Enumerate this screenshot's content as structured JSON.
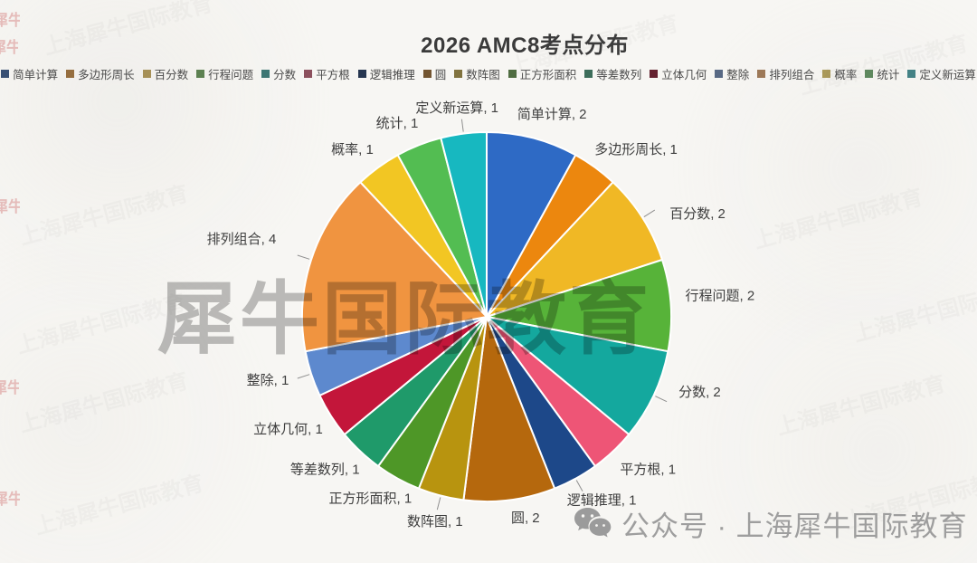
{
  "title": "2026 AMC8考点分布",
  "watermark": {
    "center_text": "犀牛国际教育",
    "ghost_text": "上海犀牛国际教育",
    "stamp_text": "犀牛国际教育"
  },
  "footer": {
    "icon": "wechat-icon",
    "account_label": "公众号",
    "separator": " · ",
    "account_name": "上海犀牛国际教育"
  },
  "chart_data": {
    "type": "pie",
    "title": "2026 AMC8考点分布",
    "legend_position": "top",
    "start_angle_deg": 0,
    "direction": "clockwise",
    "total": 25,
    "label_format": "{category}, {value}",
    "categories": [
      "简单计算",
      "多边形周长",
      "百分数",
      "行程问题",
      "分数",
      "平方根",
      "逻辑推理",
      "圆",
      "数阵图",
      "正方形面积",
      "等差数列",
      "立体几何",
      "整除",
      "排列组合",
      "概率",
      "统计",
      "定义新运算"
    ],
    "values": [
      2,
      1,
      2,
      2,
      2,
      1,
      1,
      2,
      1,
      1,
      1,
      1,
      1,
      4,
      1,
      1,
      1
    ],
    "colors": [
      "#2e6ac5",
      "#ec870e",
      "#f0b825",
      "#57b339",
      "#14a89e",
      "#ee5576",
      "#1d4889",
      "#b5680d",
      "#b8940f",
      "#4e9727",
      "#1f9a6a",
      "#c3163a",
      "#5d89ce",
      "#f09440",
      "#f2c623",
      "#53bd52",
      "#17b8c0"
    ],
    "slice_label_color": "#3e3e3e",
    "slice_border_color": "#ffffff"
  }
}
